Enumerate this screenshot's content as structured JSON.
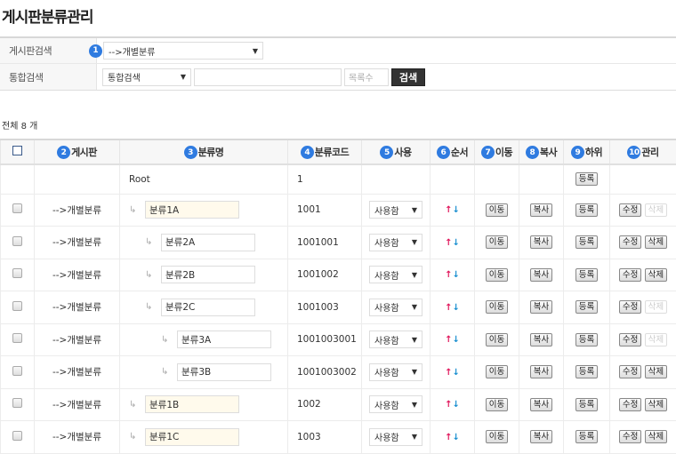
{
  "page_title": "게시판분류관리",
  "search": {
    "board_label": "게시판검색",
    "board_value": "-->개별분류",
    "total_label": "통합검색",
    "total_select": "통합검색",
    "keyword": "",
    "count_placeholder": "목록수",
    "search_button": "검색"
  },
  "total_text": "전체 8 개",
  "headers": [
    {
      "n": "2",
      "t": "게시판"
    },
    {
      "n": "3",
      "t": "분류명"
    },
    {
      "n": "4",
      "t": "분류코드"
    },
    {
      "n": "5",
      "t": "사용"
    },
    {
      "n": "6",
      "t": "순서"
    },
    {
      "n": "7",
      "t": "이동"
    },
    {
      "n": "8",
      "t": "복사"
    },
    {
      "n": "9",
      "t": "하위"
    },
    {
      "n": "10",
      "t": "관리"
    }
  ],
  "badge1": "1",
  "root": {
    "name": "Root",
    "code": "1",
    "register": "등록"
  },
  "labels": {
    "use": "사용함",
    "move": "이동",
    "copy": "복사",
    "register": "등록",
    "edit": "수정",
    "delete": "삭제",
    "up": "↑",
    "down": "↓",
    "tree": "↳"
  },
  "rows": [
    {
      "board": "-->개별분류",
      "name": "분류1A",
      "code": "1001",
      "level": 1,
      "delete_enabled": false
    },
    {
      "board": "-->개별분류",
      "name": "분류2A",
      "code": "1001001",
      "level": 2,
      "delete_enabled": true
    },
    {
      "board": "-->개별분류",
      "name": "분류2B",
      "code": "1001002",
      "level": 2,
      "delete_enabled": true
    },
    {
      "board": "-->개별분류",
      "name": "분류2C",
      "code": "1001003",
      "level": 2,
      "delete_enabled": false
    },
    {
      "board": "-->개별분류",
      "name": "분류3A",
      "code": "1001003001",
      "level": 3,
      "delete_enabled": false
    },
    {
      "board": "-->개별분류",
      "name": "분류3B",
      "code": "1001003002",
      "level": 3,
      "delete_enabled": true
    },
    {
      "board": "-->개별분류",
      "name": "분류1B",
      "code": "1002",
      "level": 1,
      "delete_enabled": true
    },
    {
      "board": "-->개별분류",
      "name": "분류1C",
      "code": "1003",
      "level": 1,
      "delete_enabled": true
    }
  ]
}
